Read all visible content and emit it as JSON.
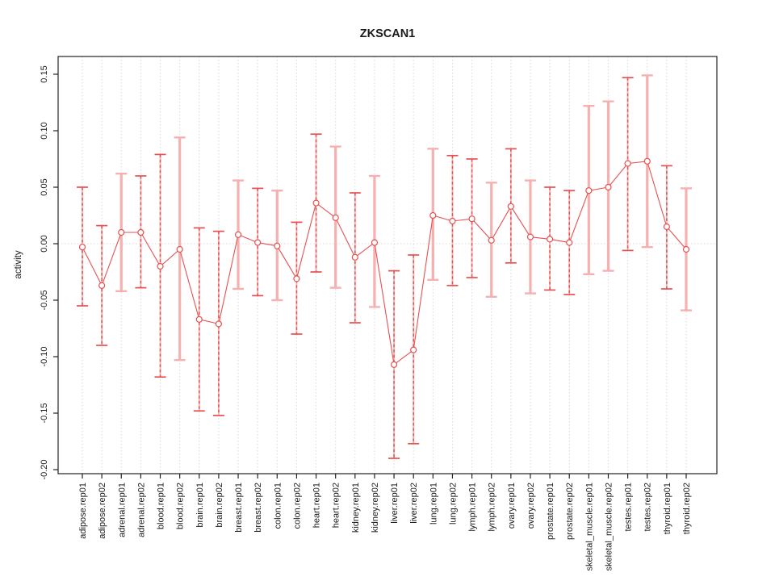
{
  "title": "ZKSCAN1",
  "colors": {
    "point_red": "#e85050",
    "bar_pink": "#f7b0b0",
    "grid_gray": "#d9d9d9",
    "axis_black": "#222222",
    "background": "#ffffff"
  },
  "chart_data": {
    "type": "scatter",
    "subtype": "points-with-error-bars",
    "title": "ZKSCAN1",
    "xlabel": "",
    "ylabel": "activity",
    "ylim": [
      -0.2,
      0.15
    ],
    "yticks": [
      0.15,
      0.1,
      0.05,
      0.0,
      -0.05,
      -0.1,
      -0.15,
      -0.2
    ],
    "grid": "dotted vertical line at every category; dotted horizontal line at y=0",
    "legend_position": "none",
    "categories": [
      "adipose.rep01",
      "adipose.rep02",
      "adrenal.rep01",
      "adrenal.rep02",
      "blood.rep01",
      "blood.rep02",
      "brain.rep01",
      "brain.rep02",
      "breast.rep01",
      "breast.rep02",
      "colon.rep01",
      "colon.rep02",
      "heart.rep01",
      "heart.rep02",
      "kidney.rep01",
      "kidney.rep02",
      "liver.rep01",
      "liver.rep02",
      "lung.rep01",
      "lung.rep02",
      "lymph.rep01",
      "lymph.rep02",
      "ovary.rep01",
      "ovary.rep02",
      "prostate.rep01",
      "prostate.rep02",
      "skeletal_muscle.rep01",
      "skeletal_muscle.rep02",
      "testes.rep01",
      "testes.rep02",
      "thyroid.rep01",
      "thyroid.rep02"
    ],
    "series": [
      {
        "name": "activity",
        "values": [
          -0.003,
          -0.037,
          0.01,
          0.01,
          -0.02,
          -0.005,
          -0.067,
          -0.071,
          0.008,
          0.001,
          -0.002,
          -0.031,
          0.036,
          0.023,
          -0.012,
          0.001,
          -0.107,
          -0.094,
          0.025,
          0.02,
          0.022,
          0.003,
          0.033,
          0.006,
          0.004,
          0.001,
          0.047,
          0.05,
          0.071,
          0.073,
          0.015,
          -0.005
        ],
        "ci_low": [
          -0.055,
          -0.09,
          -0.042,
          -0.039,
          -0.118,
          -0.103,
          -0.148,
          -0.152,
          -0.04,
          -0.046,
          -0.05,
          -0.08,
          -0.025,
          -0.039,
          -0.07,
          -0.056,
          -0.19,
          -0.177,
          -0.032,
          -0.037,
          -0.03,
          -0.047,
          -0.017,
          -0.044,
          -0.041,
          -0.045,
          -0.027,
          -0.024,
          -0.006,
          -0.003,
          -0.04,
          -0.059
        ],
        "ci_high": [
          0.05,
          0.016,
          0.062,
          0.06,
          0.079,
          0.094,
          0.014,
          0.011,
          0.056,
          0.049,
          0.047,
          0.019,
          0.097,
          0.086,
          0.045,
          0.06,
          -0.024,
          -0.01,
          0.084,
          0.078,
          0.075,
          0.054,
          0.084,
          0.056,
          0.05,
          0.047,
          0.122,
          0.126,
          0.147,
          0.149,
          0.069,
          0.049
        ],
        "bar_styles": [
          "dashed",
          "dashed",
          "solid",
          "dashed",
          "dashed",
          "solid",
          "dashed",
          "dashed",
          "solid",
          "dashed",
          "solid",
          "dashed",
          "dashed",
          "solid",
          "dashed",
          "solid",
          "dashed",
          "dashed",
          "solid",
          "dashed",
          "dashed",
          "solid",
          "dashed",
          "solid",
          "dashed",
          "dashed",
          "solid",
          "solid",
          "dashed",
          "solid",
          "dashed",
          "solid"
        ]
      }
    ]
  }
}
